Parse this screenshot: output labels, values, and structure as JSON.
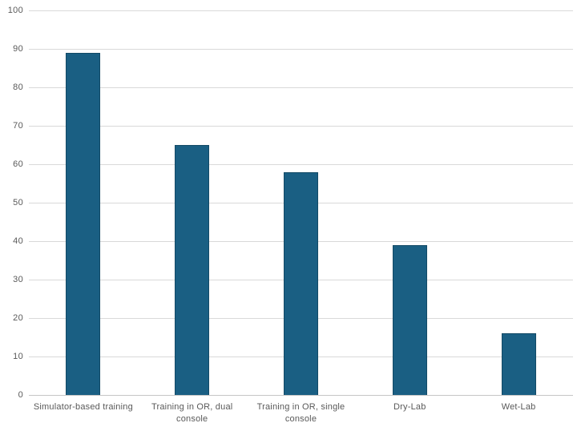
{
  "chart_data": {
    "type": "bar",
    "categories": [
      "Simulator-based training",
      "Training in OR, dual console",
      "Training in OR, single console",
      "Dry-Lab",
      "Wet-Lab"
    ],
    "values": [
      89,
      65,
      58,
      39,
      16
    ],
    "ylim": [
      0,
      100
    ],
    "yticks": [
      0,
      10,
      20,
      30,
      40,
      50,
      60,
      70,
      80,
      90,
      100
    ],
    "grid": "horizontal",
    "legend": "none",
    "title": "",
    "xlabel": "",
    "ylabel": "",
    "colors": {
      "bar_fill": "#1a5f83",
      "bar_border": "#134a66",
      "gridline": "#d9d9d9",
      "axis_line": "#c6c6c6",
      "label_text": "#595959",
      "background": "#ffffff"
    }
  }
}
